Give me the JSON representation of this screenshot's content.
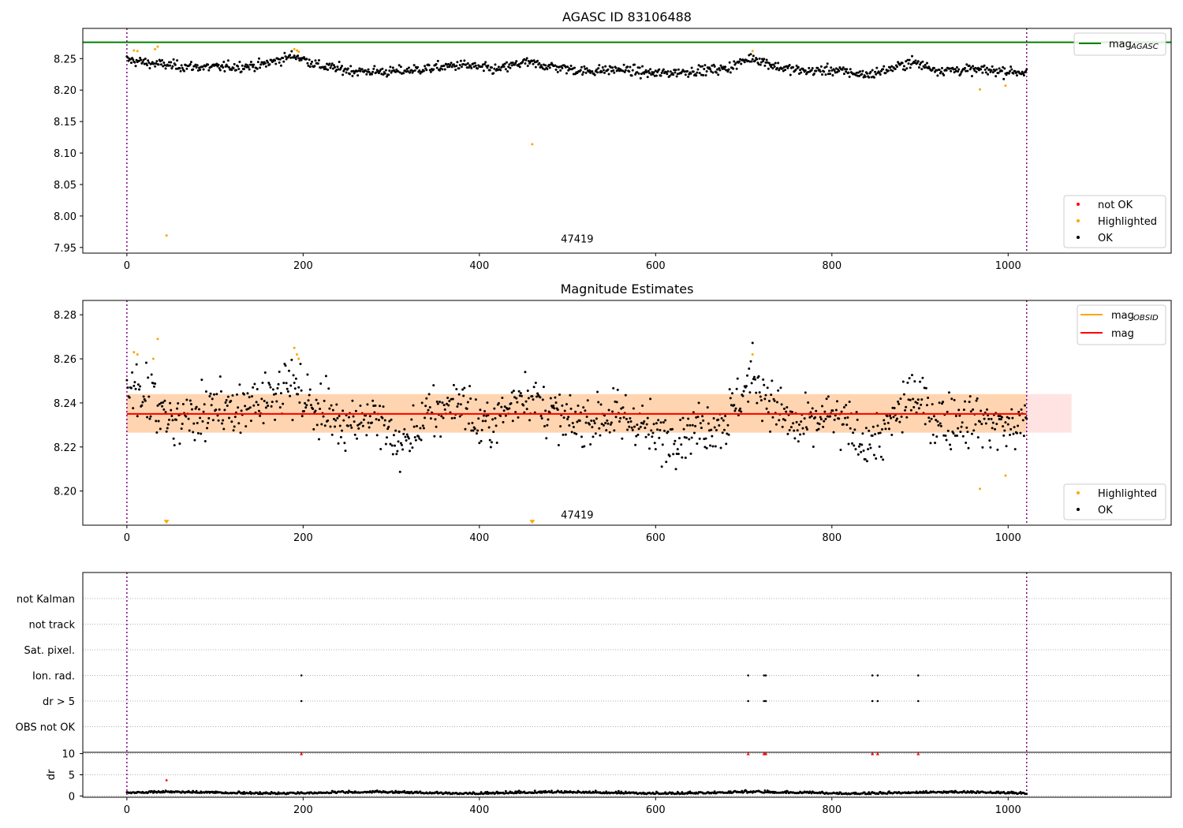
{
  "chart_data": [
    {
      "type": "scatter",
      "title": "AGASC ID 83106488",
      "xlim": [
        -50,
        1185
      ],
      "ylim": [
        7.941,
        8.298
      ],
      "x_ticks": [
        0,
        200,
        400,
        600,
        800,
        1000
      ],
      "y_ticks": [
        7.95,
        8.0,
        8.05,
        8.1,
        8.15,
        8.2,
        8.25
      ],
      "y_tick_labels": [
        "7.95",
        "8.00",
        "8.05",
        "8.10",
        "8.15",
        "8.20",
        "8.25"
      ],
      "x_tick_labels": [
        "0",
        "200",
        "400",
        "600",
        "800",
        "1000"
      ],
      "obsid_label": {
        "text": "47419",
        "x": 511,
        "y": 7.958
      },
      "obsid_boundaries": [
        0,
        1021
      ],
      "mag_agasc": 8.276,
      "ok_series": {
        "x_range": [
          0,
          1021
        ],
        "n_points": 1022,
        "baseline": 8.234,
        "scatter": 0.004,
        "segments": [
          [
            0,
            8.248
          ],
          [
            30,
            8.242
          ],
          [
            60,
            8.238
          ],
          [
            100,
            8.236
          ],
          [
            150,
            8.239
          ],
          [
            190,
            8.255
          ],
          [
            220,
            8.238
          ],
          [
            260,
            8.23
          ],
          [
            300,
            8.229
          ],
          [
            340,
            8.234
          ],
          [
            380,
            8.24
          ],
          [
            420,
            8.232
          ],
          [
            450,
            8.244
          ],
          [
            480,
            8.238
          ],
          [
            520,
            8.23
          ],
          [
            560,
            8.233
          ],
          [
            600,
            8.226
          ],
          [
            640,
            8.23
          ],
          [
            680,
            8.234
          ],
          [
            710,
            8.252
          ],
          [
            740,
            8.236
          ],
          [
            770,
            8.23
          ],
          [
            800,
            8.232
          ],
          [
            840,
            8.224
          ],
          [
            870,
            8.235
          ],
          [
            890,
            8.245
          ],
          [
            920,
            8.232
          ],
          [
            960,
            8.232
          ],
          [
            1000,
            8.23
          ],
          [
            1021,
            8.228
          ]
        ]
      },
      "highlighted_points": [
        [
          8,
          8.263
        ],
        [
          12,
          8.262
        ],
        [
          32,
          8.265
        ],
        [
          35,
          8.269
        ],
        [
          45,
          7.969
        ],
        [
          190,
          8.265
        ],
        [
          193,
          8.263
        ],
        [
          195,
          8.261
        ],
        [
          460,
          8.114
        ],
        [
          710,
          8.262
        ],
        [
          968,
          8.201
        ],
        [
          997,
          8.207
        ]
      ],
      "not_ok_points": [],
      "legend_top": [
        {
          "label": "mag",
          "sub": "AGASC",
          "color": "#008000"
        }
      ],
      "legend_bottom": [
        {
          "label": "not OK",
          "color": "#ff0000"
        },
        {
          "label": "Highlighted",
          "color": "#ffa500"
        },
        {
          "label": "OK",
          "color": "#000000"
        }
      ]
    },
    {
      "type": "scatter",
      "title": "Magnitude Estimates",
      "xlim": [
        -50,
        1185
      ],
      "ylim": [
        8.1845,
        8.2865
      ],
      "x_ticks": [
        0,
        200,
        400,
        600,
        800,
        1000
      ],
      "y_ticks": [
        8.2,
        8.22,
        8.24,
        8.26,
        8.28
      ],
      "y_tick_labels": [
        "8.20",
        "8.22",
        "8.24",
        "8.26",
        "8.28"
      ],
      "x_tick_labels": [
        "0",
        "200",
        "400",
        "600",
        "800",
        "1000"
      ],
      "obsid_label": {
        "text": "47419",
        "x": 511,
        "y": 8.1875
      },
      "obsid_boundaries": [
        0,
        1021
      ],
      "mag": 8.235,
      "mag_band": {
        "x": [
          -1,
          1072
        ],
        "y": [
          8.2265,
          8.244
        ]
      },
      "mag_obsid": {
        "x": [
          0,
          1021
        ],
        "value": 8.235,
        "band": [
          8.2265,
          8.244
        ]
      },
      "ok_series": {
        "x_range": [
          0,
          1021
        ],
        "n_points": 1022,
        "baseline": 8.234,
        "scatter": 0.006,
        "segments": [
          [
            0,
            8.25
          ],
          [
            20,
            8.245
          ],
          [
            40,
            8.238
          ],
          [
            60,
            8.232
          ],
          [
            100,
            8.236
          ],
          [
            140,
            8.238
          ],
          [
            180,
            8.25
          ],
          [
            200,
            8.242
          ],
          [
            240,
            8.232
          ],
          [
            280,
            8.234
          ],
          [
            310,
            8.22
          ],
          [
            340,
            8.233
          ],
          [
            380,
            8.242
          ],
          [
            400,
            8.228
          ],
          [
            430,
            8.236
          ],
          [
            450,
            8.246
          ],
          [
            480,
            8.236
          ],
          [
            500,
            8.23
          ],
          [
            540,
            8.234
          ],
          [
            580,
            8.232
          ],
          [
            600,
            8.224
          ],
          [
            640,
            8.228
          ],
          [
            680,
            8.232
          ],
          [
            710,
            8.252
          ],
          [
            740,
            8.236
          ],
          [
            760,
            8.228
          ],
          [
            800,
            8.234
          ],
          [
            840,
            8.222
          ],
          [
            860,
            8.226
          ],
          [
            890,
            8.244
          ],
          [
            920,
            8.232
          ],
          [
            960,
            8.233
          ],
          [
            1000,
            8.229
          ],
          [
            1021,
            8.23
          ]
        ]
      },
      "highlighted_points": [
        [
          8,
          8.263
        ],
        [
          12,
          8.262
        ],
        [
          30,
          8.26
        ],
        [
          35,
          8.269
        ],
        [
          190,
          8.265
        ],
        [
          193,
          8.262
        ],
        [
          195,
          8.26
        ],
        [
          710,
          8.262
        ],
        [
          968,
          8.201
        ],
        [
          997,
          8.207
        ]
      ],
      "highlighted_offscale": [
        [
          45,
          8.1855
        ],
        [
          460,
          8.1855
        ]
      ],
      "legend_top": [
        {
          "label": "mag",
          "sub": "OBSID",
          "color": "#ffa500"
        },
        {
          "label": "mag",
          "sub": "",
          "color": "#ff0000"
        }
      ],
      "legend_bottom": [
        {
          "label": "Highlighted",
          "color": "#ffa500"
        },
        {
          "label": "OK",
          "color": "#000000"
        }
      ]
    },
    {
      "type": "scatter",
      "xlim": [
        -50,
        1185
      ],
      "x_ticks": [
        0,
        200,
        400,
        600,
        800,
        1000
      ],
      "x_tick_labels": [
        "0",
        "200",
        "400",
        "600",
        "800",
        "1000"
      ],
      "flag_rows": [
        "not Kalman",
        "not track",
        "Sat. pixel.",
        "Ion. rad.",
        "dr > 5",
        "OBS not OK"
      ],
      "flag_points": {
        "Ion. rad.": [
          198,
          705,
          723,
          725,
          846,
          852,
          898
        ],
        "dr > 5": [
          198,
          705,
          723,
          725,
          846,
          852,
          898
        ]
      },
      "obsid_boundaries": [
        0,
        1021
      ],
      "dr_panel": {
        "ylabel": "dr",
        "ylim": [
          -0.3,
          10.3
        ],
        "y_ticks": [
          0,
          5,
          10
        ],
        "y_tick_labels": [
          "0",
          "5",
          "10"
        ],
        "baseline": 0.6,
        "clipped_points": [
          198,
          705,
          723,
          725,
          846,
          852,
          898
        ],
        "outliers": [
          [
            45,
            3.7
          ]
        ]
      }
    }
  ]
}
